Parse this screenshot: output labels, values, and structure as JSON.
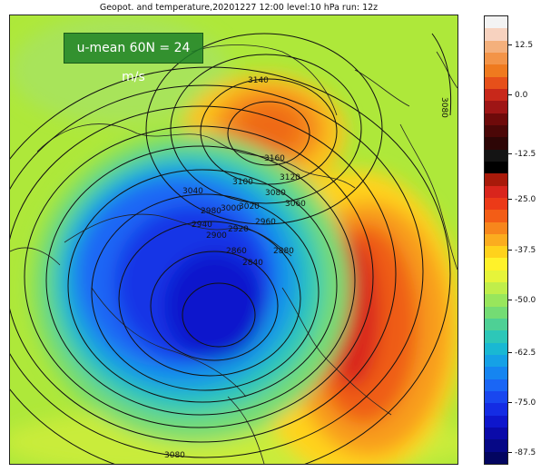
{
  "title": "Geopot. and temperature,20201227 12:00 level:10 hPa run: 12z",
  "annotation": "u-mean 60N = 24 m/s",
  "colorbar": {
    "ticks": [
      "12.5",
      "0.0",
      "-12.5",
      "-25.0",
      "-37.5",
      "-50.0",
      "-62.5",
      "-75.0",
      "-87.5"
    ],
    "colors": [
      "#f3f3f3",
      "#f7d2bf",
      "#f4b07c",
      "#f39448",
      "#ef7a1f",
      "#e6501a",
      "#c8281a",
      "#9e1515",
      "#6e0a0a",
      "#4b0707",
      "#2d0606",
      "#141414",
      "#000000",
      "#a81a0a",
      "#d9251c",
      "#ec3a18",
      "#f35d16",
      "#f7861c",
      "#fbac1f",
      "#ffd21c",
      "#fff22a",
      "#e6f43a",
      "#c0ee4a",
      "#98e65c",
      "#74dc74",
      "#4ed095",
      "#2dc7b8",
      "#19b8d3",
      "#15a1e6",
      "#1585f1",
      "#1a66f5",
      "#1947ef",
      "#142ce4",
      "#0e16cc",
      "#0a0aa9",
      "#060886",
      "#030560"
    ]
  },
  "contour_labels": [
    "3140",
    "3160",
    "3120",
    "3100",
    "3080",
    "3060",
    "3040",
    "3020",
    "3000",
    "2980",
    "2960",
    "2940",
    "2920",
    "2900",
    "2880",
    "2860",
    "2840",
    "3080",
    "3080"
  ]
}
